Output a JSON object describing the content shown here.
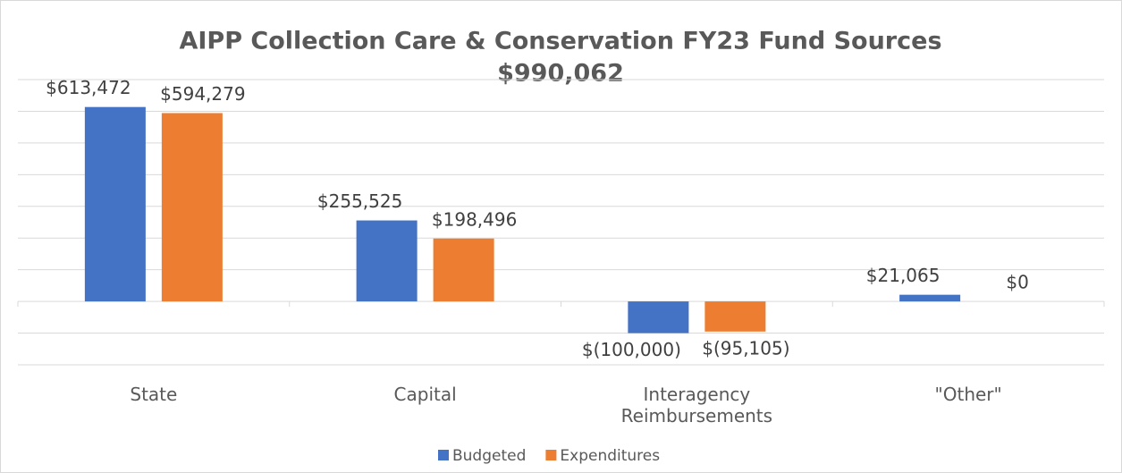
{
  "chart_data": {
    "type": "bar",
    "title": "AIPP Collection Care & Conservation FY23 Fund Sources",
    "subtitle": "$990,062",
    "categories": [
      "State",
      "Capital",
      "Interagency Reimbursements",
      "\"Other\""
    ],
    "series": [
      {
        "name": "Budgeted",
        "color": "#4472c4",
        "values": [
          613472,
          255525,
          -100000,
          21065
        ],
        "value_labels": [
          "$613,472",
          "$255,525",
          "$(100,000)",
          "$21,065"
        ]
      },
      {
        "name": "Expenditures",
        "color": "#ed7d31",
        "values": [
          594279,
          198496,
          -95105,
          0
        ],
        "value_labels": [
          "$594,279",
          "$198,496",
          "$(95,105)",
          "$0"
        ]
      }
    ],
    "ylim": [
      -200000,
      700000
    ],
    "yticks": [
      -200000,
      -100000,
      0,
      100000,
      200000,
      300000,
      400000,
      500000,
      600000,
      700000
    ],
    "grid": true,
    "legend": "bottom"
  }
}
